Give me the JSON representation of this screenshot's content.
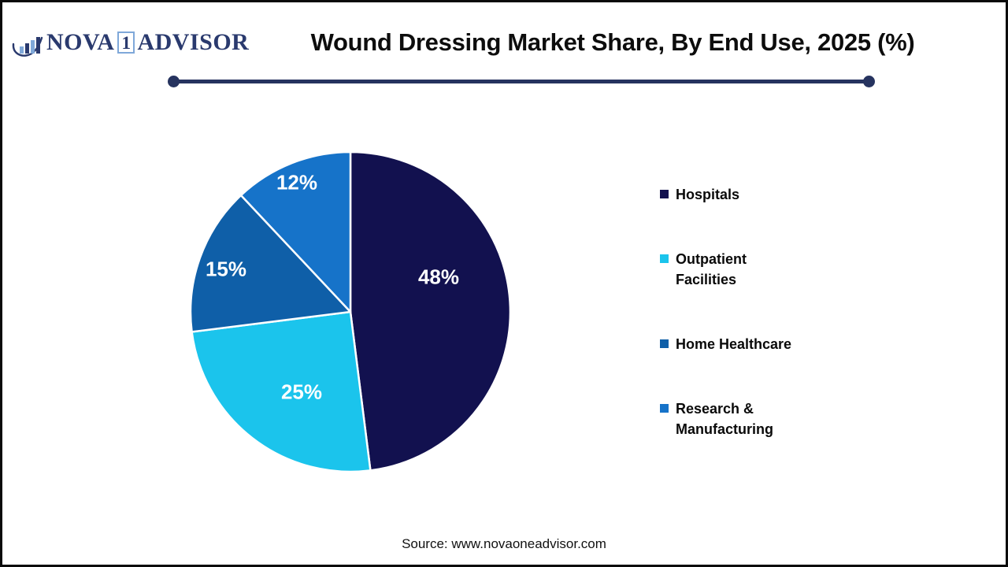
{
  "page": {
    "background": "#ffffff",
    "border_color": "#0a0a0a"
  },
  "logo": {
    "icon": "bar-chart-swoosh-icon",
    "name_part1": "NOVA",
    "name_boxed": "1",
    "name_part2": "ADVISOR",
    "text_color": "#2a3a6e",
    "box_border_color": "#7fa8d9",
    "bar_colors": [
      "#7fa8d9",
      "#2a3a6e",
      "#7fa8d9",
      "#2a3a6e"
    ]
  },
  "header": {
    "title": "Wound Dressing Market Share, By End Use, 2025 (%)",
    "divider_color": "#26335f"
  },
  "chart_data": {
    "type": "pie",
    "title": "Wound Dressing Market Share, By End Use, 2025 (%)",
    "unit": "%",
    "start_angle_deg": 0,
    "direction": "clockwise",
    "legend_position": "right",
    "data_label_color": "#ffffff",
    "slice_border_color": "#ffffff",
    "slices": [
      {
        "label": "Hospitals",
        "value": 48,
        "data_label": "48%",
        "color": "#12114f"
      },
      {
        "label": "Outpatient Facilities",
        "value": 25,
        "data_label": "25%",
        "color": "#1bc4ec"
      },
      {
        "label": "Home Healthcare",
        "value": 15,
        "data_label": "15%",
        "color": "#0f5fa8"
      },
      {
        "label": "Research & Manufacturing",
        "value": 12,
        "data_label": "12%",
        "color": "#1673c9"
      }
    ]
  },
  "legend": {
    "items": [
      {
        "label": "Hospitals",
        "color": "#12114f"
      },
      {
        "label": "Outpatient Facilities",
        "color": "#1bc4ec"
      },
      {
        "label": "Home Healthcare",
        "color": "#0f5fa8"
      },
      {
        "label": "Research & Manufacturing",
        "color": "#1673c9"
      }
    ]
  },
  "footer": {
    "source": "Source: www.novaoneadvisor.com"
  }
}
